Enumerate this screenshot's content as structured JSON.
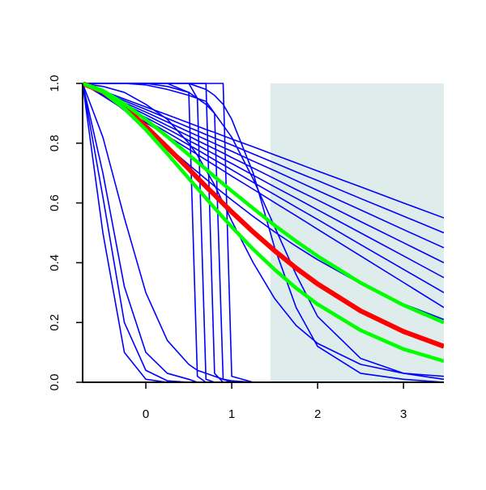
{
  "chart_data": {
    "type": "line",
    "x": [
      -0.736,
      -0.5,
      -0.25,
      0,
      0.25,
      0.5,
      0.6,
      0.7,
      0.8,
      0.9,
      1,
      1.25,
      1.5,
      1.75,
      2,
      2.5,
      3,
      3.47
    ],
    "xlim": [
      -0.736,
      3.47
    ],
    "ylim": [
      0,
      1
    ],
    "xticks": [
      0,
      1,
      2,
      3
    ],
    "yticks": [
      {
        "value": 0,
        "label": "0.0"
      },
      0.2,
      0.4,
      0.6,
      0.8,
      {
        "value": 1,
        "label": "1.0"
      }
    ],
    "shaded_region": {
      "xlim": [
        1.45,
        3.47
      ],
      "color": "#dfecec"
    },
    "series": [
      {
        "color": "#0000ff",
        "values": [
          1,
          0.975,
          0.948,
          0.921,
          0.895,
          0.868,
          0.857,
          0.846,
          0.836,
          0.825,
          0.814,
          0.788,
          0.761,
          0.734,
          0.707,
          0.654,
          0.6,
          0.55
        ]
      },
      {
        "color": "#0000ff",
        "values": [
          1,
          0.972,
          0.942,
          0.913,
          0.883,
          0.853,
          0.841,
          0.829,
          0.817,
          0.806,
          0.794,
          0.764,
          0.734,
          0.704,
          0.675,
          0.615,
          0.556,
          0.5
        ]
      },
      {
        "color": "#0000ff",
        "values": [
          1,
          0.969,
          0.936,
          0.904,
          0.871,
          0.838,
          0.825,
          0.812,
          0.799,
          0.786,
          0.773,
          0.74,
          0.708,
          0.675,
          0.642,
          0.577,
          0.511,
          0.45
        ]
      },
      {
        "color": "#0000ff",
        "values": [
          1,
          0.966,
          0.931,
          0.895,
          0.859,
          0.824,
          0.809,
          0.795,
          0.781,
          0.767,
          0.752,
          0.717,
          0.681,
          0.645,
          0.61,
          0.538,
          0.467,
          0.4
        ]
      },
      {
        "color": "#0000ff",
        "values": [
          1,
          0.964,
          0.925,
          0.886,
          0.848,
          0.809,
          0.794,
          0.778,
          0.763,
          0.747,
          0.732,
          0.693,
          0.654,
          0.616,
          0.577,
          0.5,
          0.423,
          0.35
        ]
      },
      {
        "color": "#0000ff",
        "values": [
          1,
          0.961,
          0.919,
          0.878,
          0.836,
          0.794,
          0.778,
          0.761,
          0.744,
          0.728,
          0.711,
          0.669,
          0.628,
          0.586,
          0.545,
          0.461,
          0.378,
          0.3
        ]
      },
      {
        "color": "#0000ff",
        "values": [
          1,
          0.958,
          0.913,
          0.869,
          0.824,
          0.78,
          0.762,
          0.744,
          0.726,
          0.708,
          0.69,
          0.646,
          0.601,
          0.557,
          0.512,
          0.423,
          0.334,
          0.25
        ]
      },
      {
        "color": "#0000ff",
        "values": [
          1,
          0.964,
          0.91,
          0.851,
          0.789,
          0.728,
          0.704,
          0.68,
          0.656,
          0.633,
          0.61,
          0.555,
          0.503,
          0.455,
          0.41,
          0.33,
          0.262,
          0.21
        ]
      },
      {
        "color": "#0000ff",
        "values": [
          1,
          1,
          1,
          1,
          1,
          1,
          0.99,
          0.98,
          0.96,
          0.93,
          0.88,
          0.7,
          0.45,
          0.25,
          0.12,
          0.03,
          0.01,
          0
        ]
      },
      {
        "color": "#0000ff",
        "values": [
          1,
          1,
          1,
          1,
          0.99,
          0.97,
          0.95,
          0.93,
          0.9,
          0.86,
          0.82,
          0.68,
          0.52,
          0.36,
          0.22,
          0.08,
          0.03,
          0.01
        ]
      },
      {
        "color": "#0000ff",
        "values": [
          1,
          0.99,
          0.97,
          0.93,
          0.88,
          0.8,
          0.76,
          0.71,
          0.66,
          0.6,
          0.54,
          0.4,
          0.28,
          0.19,
          0.13,
          0.06,
          0.03,
          0.02
        ]
      },
      {
        "color": "#0000ff",
        "values": [
          1,
          0.5,
          0.1,
          0.01,
          0,
          0,
          0,
          0,
          0,
          0,
          0,
          0,
          0,
          0,
          0,
          0,
          0,
          0
        ]
      },
      {
        "color": "#0000ff",
        "values": [
          1,
          0.62,
          0.2,
          0.04,
          0.005,
          0,
          0,
          0,
          0,
          0,
          0,
          0,
          0,
          0,
          0,
          0,
          0,
          0
        ]
      },
      {
        "color": "#0000ff",
        "values": [
          1,
          0.82,
          0.55,
          0.3,
          0.14,
          0.06,
          0.04,
          0.03,
          0.02,
          0.01,
          0.005,
          0,
          0,
          0,
          0,
          0,
          0,
          0
        ]
      },
      {
        "color": "#0000ff",
        "values": [
          1,
          0.7,
          0.32,
          0.1,
          0.03,
          0.01,
          0,
          0,
          0,
          0,
          0,
          0,
          0,
          0,
          0,
          0,
          0,
          0
        ]
      },
      {
        "color": "#0000ff",
        "values": [
          1,
          1,
          1,
          1,
          1,
          0.97,
          0.02,
          0,
          0,
          0,
          0,
          0,
          0,
          0,
          0,
          0,
          0,
          0
        ]
      },
      {
        "color": "#0000ff",
        "values": [
          1,
          1,
          1,
          1,
          1,
          1,
          0.95,
          0.01,
          0,
          0,
          0,
          0,
          0,
          0,
          0,
          0,
          0,
          0
        ]
      },
      {
        "color": "#0000ff",
        "values": [
          1,
          1,
          1,
          1,
          1,
          1,
          1,
          1,
          0.03,
          0,
          0,
          0,
          0,
          0,
          0,
          0,
          0,
          0
        ]
      },
      {
        "color": "#0000ff",
        "values": [
          1,
          1,
          1,
          1,
          1,
          1,
          1,
          1,
          1,
          1,
          0.02,
          0,
          0,
          0,
          0,
          0,
          0,
          0
        ]
      },
      {
        "color": "#0000ff",
        "values": [
          1,
          1,
          1,
          0.995,
          0.98,
          0.96,
          0.95,
          0.94,
          0.9,
          0.01,
          0,
          0,
          0,
          0,
          0,
          0,
          0,
          0
        ]
      },
      {
        "color": "#ff0000",
        "values": [
          1,
          0.972,
          0.92,
          0.856,
          0.786,
          0.714,
          0.684,
          0.655,
          0.627,
          0.598,
          0.57,
          0.503,
          0.44,
          0.382,
          0.329,
          0.239,
          0.17,
          0.12
        ]
      },
      {
        "color": "#00ff00",
        "values": [
          1,
          0.976,
          0.932,
          0.879,
          0.822,
          0.761,
          0.737,
          0.713,
          0.688,
          0.664,
          0.64,
          0.582,
          0.525,
          0.472,
          0.422,
          0.333,
          0.258,
          0.2
        ]
      },
      {
        "color": "#00ff00",
        "values": [
          1,
          0.972,
          0.916,
          0.845,
          0.765,
          0.682,
          0.649,
          0.616,
          0.583,
          0.551,
          0.52,
          0.445,
          0.377,
          0.315,
          0.261,
          0.174,
          0.111,
          0.071
        ]
      }
    ]
  }
}
